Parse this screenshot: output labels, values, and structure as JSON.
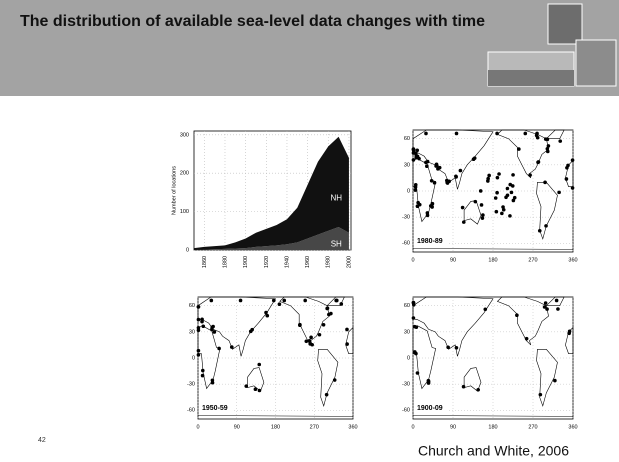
{
  "header": {
    "title": "The distribution of available sea-level data changes with time"
  },
  "chart_data": {
    "type": "area",
    "stacked": true,
    "ylabel": "Number of locations",
    "x": [
      1850,
      1860,
      1870,
      1880,
      1890,
      1900,
      1910,
      1920,
      1930,
      1940,
      1950,
      1960,
      1970,
      1980,
      1990,
      2000
    ],
    "series": [
      {
        "name": "SH",
        "color": "#474747",
        "values": [
          0,
          1,
          2,
          3,
          4,
          5,
          8,
          10,
          12,
          15,
          20,
          30,
          40,
          50,
          60,
          45
        ]
      },
      {
        "name": "NH",
        "color": "#111111",
        "values": [
          5,
          7,
          8,
          9,
          16,
          25,
          37,
          45,
          53,
          65,
          90,
          140,
          190,
          220,
          235,
          195
        ]
      }
    ],
    "xlim": [
      1850,
      2002
    ],
    "xticks": [
      1860,
      1880,
      1900,
      1920,
      1940,
      1960,
      1980,
      2000
    ],
    "ylim": [
      0,
      310
    ],
    "yticks": [
      0,
      100,
      200,
      300
    ],
    "grid": true
  },
  "maps": [
    {
      "period": "1980-89",
      "xlim": [
        0,
        360
      ],
      "ylim": [
        -70,
        70
      ],
      "xticks": [
        0,
        90,
        180,
        270,
        360
      ],
      "yticks": [
        60,
        30,
        0,
        -30,
        -60
      ]
    },
    {
      "period": "1950-59",
      "xlim": [
        0,
        360
      ],
      "ylim": [
        -70,
        70
      ],
      "xticks": [
        0,
        90,
        180,
        270,
        360
      ],
      "yticks": [
        60,
        30,
        0,
        -30,
        -60
      ]
    },
    {
      "period": "1900-09",
      "xlim": [
        0,
        360
      ],
      "ylim": [
        -70,
        70
      ],
      "xticks": [
        0,
        90,
        180,
        270,
        360
      ],
      "yticks": [
        60,
        30,
        0,
        -30,
        -60
      ]
    }
  ],
  "footer": {
    "page": "42",
    "citation": "Church and White, 2006"
  }
}
